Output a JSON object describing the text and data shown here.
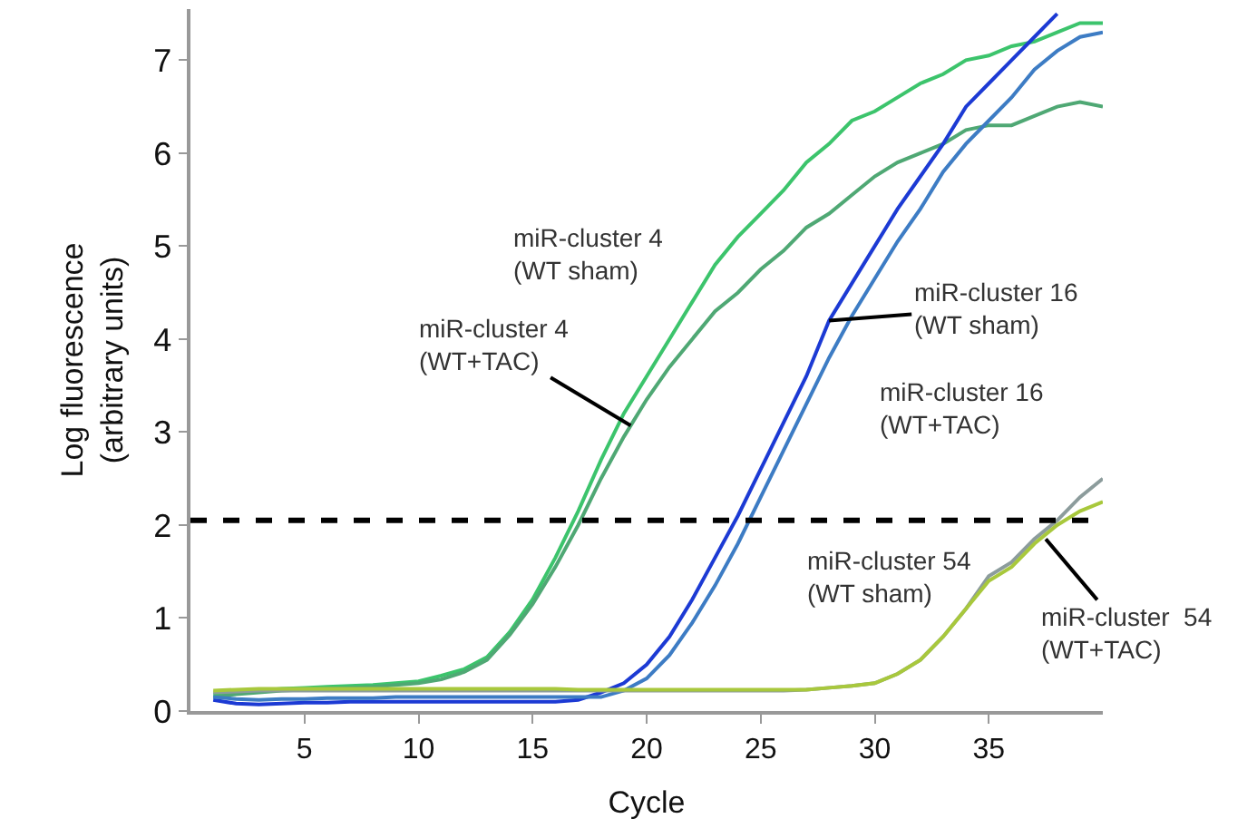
{
  "chart_data": {
    "type": "line",
    "xlabel": "Cycle",
    "ylabel": "Log fluorescence\n(arbitrary units)",
    "x": [
      1,
      2,
      3,
      4,
      5,
      6,
      7,
      8,
      9,
      10,
      11,
      12,
      13,
      14,
      15,
      16,
      17,
      18,
      19,
      20,
      21,
      22,
      23,
      24,
      25,
      26,
      27,
      28,
      29,
      30,
      31,
      32,
      33,
      34,
      35,
      36,
      37,
      38,
      39,
      40
    ],
    "xlim": [
      0,
      40
    ],
    "ylim": [
      0,
      7.55
    ],
    "xticks": [
      5,
      10,
      15,
      20,
      25,
      30,
      35
    ],
    "yticks": [
      0,
      1,
      2,
      3,
      4,
      5,
      6,
      7
    ],
    "grid": false,
    "marker": "none",
    "line_style": "solid",
    "series": [
      {
        "color": "#3cc46c",
        "values": [
          0.18,
          0.2,
          0.22,
          0.24,
          0.25,
          0.26,
          0.27,
          0.28,
          0.3,
          0.32,
          0.38,
          0.45,
          0.58,
          0.85,
          1.2,
          1.65,
          2.15,
          2.7,
          3.2,
          3.6,
          4.0,
          4.4,
          4.8,
          5.1,
          5.35,
          5.6,
          5.9,
          6.1,
          6.35,
          6.45,
          6.6,
          6.75,
          6.85,
          7.0,
          7.05,
          7.15,
          7.2,
          7.3,
          7.4,
          7.4
        ]
      },
      {
        "color": "#4fa874",
        "values": [
          0.15,
          0.18,
          0.2,
          0.22,
          0.23,
          0.24,
          0.25,
          0.26,
          0.28,
          0.3,
          0.34,
          0.42,
          0.55,
          0.82,
          1.15,
          1.55,
          2.0,
          2.5,
          2.95,
          3.35,
          3.7,
          4.0,
          4.3,
          4.5,
          4.75,
          4.95,
          5.2,
          5.35,
          5.55,
          5.75,
          5.9,
          6.0,
          6.1,
          6.25,
          6.3,
          6.3,
          6.4,
          6.5,
          6.55,
          6.5
        ]
      },
      {
        "color": "#1c3ad4",
        "values": [
          0.12,
          0.08,
          0.07,
          0.08,
          0.09,
          0.09,
          0.1,
          0.1,
          0.1,
          0.1,
          0.1,
          0.1,
          0.1,
          0.1,
          0.1,
          0.1,
          0.12,
          0.2,
          0.3,
          0.5,
          0.8,
          1.2,
          1.65,
          2.1,
          2.6,
          3.1,
          3.6,
          4.2,
          4.6,
          5.0,
          5.4,
          5.75,
          6.1,
          6.5,
          6.75,
          7.0,
          7.25,
          7.5,
          null,
          null
        ]
      },
      {
        "color": "#3d7cc4",
        "values": [
          0.15,
          0.13,
          0.12,
          0.13,
          0.13,
          0.14,
          0.14,
          0.14,
          0.15,
          0.15,
          0.15,
          0.15,
          0.15,
          0.15,
          0.15,
          0.15,
          0.15,
          0.15,
          0.22,
          0.35,
          0.6,
          0.95,
          1.35,
          1.8,
          2.3,
          2.8,
          3.3,
          3.8,
          4.25,
          4.65,
          5.05,
          5.4,
          5.8,
          6.1,
          6.35,
          6.6,
          6.9,
          7.1,
          7.25,
          7.3
        ]
      },
      {
        "color": "#8c9c9c",
        "values": [
          0.2,
          0.21,
          0.22,
          0.22,
          0.22,
          0.22,
          0.22,
          0.22,
          0.22,
          0.22,
          0.22,
          0.22,
          0.22,
          0.22,
          0.22,
          0.22,
          0.22,
          0.22,
          0.22,
          0.22,
          0.22,
          0.22,
          0.22,
          0.22,
          0.22,
          0.22,
          0.23,
          0.25,
          0.27,
          0.3,
          0.4,
          0.55,
          0.8,
          1.1,
          1.45,
          1.6,
          1.85,
          2.05,
          2.3,
          2.5
        ]
      },
      {
        "color": "#a8c83c",
        "values": [
          0.22,
          0.23,
          0.24,
          0.24,
          0.24,
          0.24,
          0.24,
          0.24,
          0.24,
          0.24,
          0.24,
          0.24,
          0.24,
          0.24,
          0.24,
          0.24,
          0.23,
          0.23,
          0.23,
          0.23,
          0.23,
          0.23,
          0.23,
          0.23,
          0.23,
          0.23,
          0.23,
          0.25,
          0.27,
          0.3,
          0.4,
          0.55,
          0.8,
          1.1,
          1.4,
          1.55,
          1.8,
          2.0,
          2.15,
          2.25
        ]
      }
    ],
    "ref_lines": [
      {
        "axis": "y",
        "value": 2.05,
        "color": "#000000",
        "line_style": "dashed"
      }
    ],
    "annotations": [
      "miR-cluster 4\n(WT sham)",
      {
        "text": "miR-cluster 4\n(WT+TAC)",
        "x": 19.3,
        "y": 3.07
      },
      {
        "text": "miR-cluster 16\n(WT sham)",
        "x": 28,
        "y": 4.2
      },
      "miR-cluster 16\n(WT+TAC)",
      "miR-cluster 54\n(WT sham)",
      {
        "text": "miR-cluster  54\n(WT+TAC)",
        "x": 37.5,
        "y": 1.85
      }
    ]
  }
}
